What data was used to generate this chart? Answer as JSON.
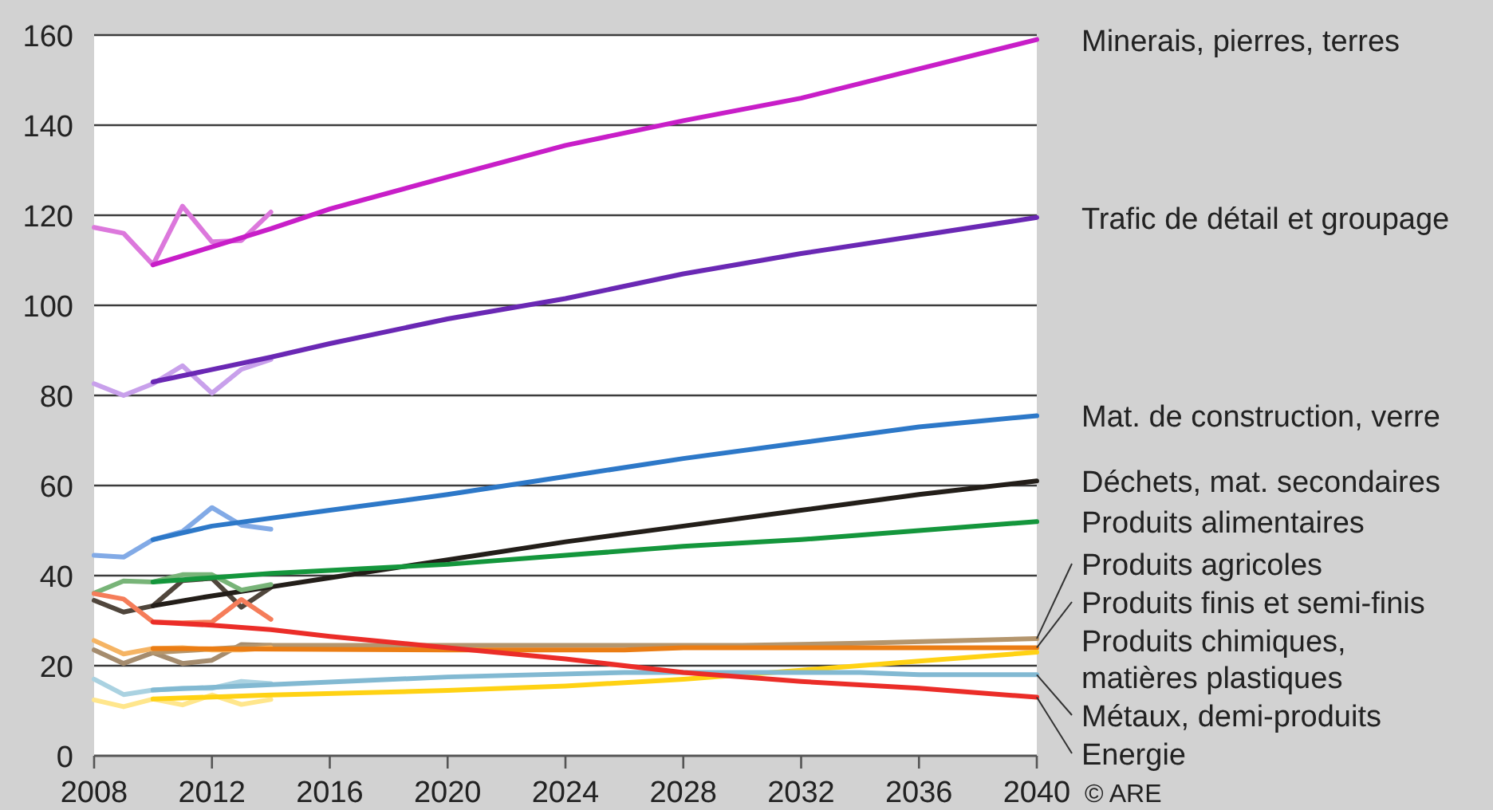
{
  "chart_data": {
    "type": "line",
    "xlim": [
      2008,
      2040
    ],
    "xticks": [
      2008,
      2012,
      2016,
      2020,
      2024,
      2028,
      2032,
      2036,
      2040
    ],
    "ylim": [
      0,
      160
    ],
    "yticks": [
      0,
      20,
      40,
      60,
      80,
      100,
      120,
      140,
      160
    ],
    "grid": "y",
    "annotations": [
      "© ARE"
    ],
    "series": [
      {
        "color": "#dc78dc",
        "x": [
          2008,
          2009,
          2010,
          2011,
          2012,
          2013,
          2014
        ],
        "values": [
          117.3,
          116,
          109,
          122,
          114.1,
          114.4,
          120.7
        ]
      },
      {
        "name": "Minerais, pierres, terres",
        "color": "#c81ec8",
        "x": [
          2010,
          2012,
          2014,
          2016,
          2020,
          2024,
          2028,
          2032,
          2036,
          2040
        ],
        "values": [
          109,
          113,
          117,
          121.4,
          128.5,
          135.5,
          141,
          146,
          152.5,
          159
        ]
      },
      {
        "color": "#c8a0eb",
        "x": [
          2008,
          2009,
          2010,
          2011,
          2012,
          2013,
          2014
        ],
        "values": [
          82.6,
          80,
          82.6,
          86.6,
          80.5,
          85.8,
          88
        ]
      },
      {
        "name": "Trafic de détail et groupage",
        "color": "#6a28b4",
        "x": [
          2010,
          2014,
          2016,
          2020,
          2024,
          2028,
          2032,
          2036,
          2040
        ],
        "values": [
          83,
          88.5,
          91.5,
          97,
          101.5,
          107,
          111.5,
          115.5,
          119.5
        ]
      },
      {
        "color": "#82aae6",
        "x": [
          2008,
          2009,
          2010,
          2011,
          2012,
          2013,
          2014
        ],
        "values": [
          44.5,
          44.1,
          48,
          49.8,
          55.1,
          51.2,
          50.3
        ]
      },
      {
        "name": "Mat. de construction, verre",
        "color": "#2d78c8",
        "x": [
          2010,
          2012,
          2016,
          2020,
          2024,
          2028,
          2032,
          2036,
          2040
        ],
        "values": [
          48,
          51,
          54.5,
          58,
          62,
          66,
          69.5,
          73,
          75.5
        ]
      },
      {
        "color": "#50463c",
        "x": [
          2008,
          2009,
          2010,
          2011,
          2012,
          2013,
          2014
        ],
        "values": [
          34.5,
          31.9,
          33.3,
          38.9,
          39.4,
          33,
          37.4
        ]
      },
      {
        "name": "Déchets, mat. secondaires",
        "color": "#231e19",
        "x": [
          2010,
          2012,
          2014,
          2016,
          2020,
          2024,
          2028,
          2032,
          2036,
          2040
        ],
        "values": [
          33.3,
          35.5,
          37.5,
          39.5,
          43.5,
          47.5,
          51,
          54.5,
          58,
          61
        ]
      },
      {
        "color": "#78b478",
        "x": [
          2008,
          2009,
          2010,
          2011,
          2012,
          2013,
          2014
        ],
        "values": [
          36.1,
          38.8,
          38.6,
          40.2,
          40.2,
          36.8,
          38
        ]
      },
      {
        "name": "Produits alimentaires",
        "color": "#14963c",
        "x": [
          2010,
          2014,
          2020,
          2024,
          2028,
          2032,
          2036,
          2040
        ],
        "values": [
          38.6,
          40.5,
          42.5,
          44.5,
          46.5,
          48,
          50,
          52
        ]
      },
      {
        "color": "#a58c6e",
        "x": [
          2008,
          2009,
          2010,
          2011,
          2012,
          2013,
          2014
        ],
        "values": [
          23.5,
          20.5,
          22.9,
          20.5,
          21.2,
          24.7,
          24.5
        ]
      },
      {
        "name": "Produits agricoles",
        "color": "#b4966e",
        "x": [
          2010,
          2014,
          2020,
          2030,
          2034,
          2040
        ],
        "values": [
          22.9,
          24.5,
          24.5,
          24.5,
          25,
          26
        ]
      },
      {
        "color": "#f5b464",
        "x": [
          2008,
          2009,
          2010,
          2011,
          2012,
          2013,
          2014
        ],
        "values": [
          25.6,
          22.6,
          23.8,
          24,
          23.5,
          23.5,
          24
        ]
      },
      {
        "name": "Produits finis et semi-finis",
        "color": "#eb7d14",
        "x": [
          2010,
          2020,
          2026,
          2028,
          2036,
          2040
        ],
        "values": [
          23.8,
          23.5,
          23.5,
          24,
          24,
          24
        ]
      },
      {
        "color": "#ffe68c",
        "x": [
          2008,
          2009,
          2010,
          2011,
          2012,
          2013,
          2014
        ],
        "values": [
          12.4,
          10.9,
          12.6,
          11.3,
          13.5,
          11.4,
          12.5
        ]
      },
      {
        "name": "Produits chimiques, matières plastiques",
        "color": "#ffd214",
        "x": [
          2010,
          2014,
          2020,
          2024,
          2028,
          2032,
          2036,
          2040
        ],
        "values": [
          12.6,
          13.5,
          14.5,
          15.5,
          17,
          19,
          21,
          23
        ]
      },
      {
        "color": "#aad2e1",
        "x": [
          2008,
          2009,
          2010,
          2011,
          2012,
          2013,
          2014
        ],
        "values": [
          17,
          13.6,
          14.6,
          15,
          15,
          16.5,
          16
        ]
      },
      {
        "name": "Métaux, demi-produits",
        "color": "#82b9d2",
        "x": [
          2010,
          2014,
          2020,
          2026,
          2034,
          2036,
          2040
        ],
        "values": [
          14.6,
          15.8,
          17.5,
          18.5,
          18.5,
          18,
          18
        ]
      },
      {
        "color": "#f57d5a",
        "x": [
          2008,
          2009,
          2010,
          2011,
          2012,
          2013,
          2014
        ],
        "values": [
          36,
          34.8,
          29.7,
          29.5,
          29.7,
          34.7,
          30.3
        ]
      },
      {
        "name": "Energie",
        "color": "#eb2d28",
        "x": [
          2010,
          2012,
          2014,
          2016,
          2020,
          2024,
          2028,
          2032,
          2036,
          2040
        ],
        "values": [
          29.7,
          29,
          28,
          26.5,
          24,
          21.5,
          18.5,
          16.5,
          15,
          13
        ]
      }
    ]
  }
}
